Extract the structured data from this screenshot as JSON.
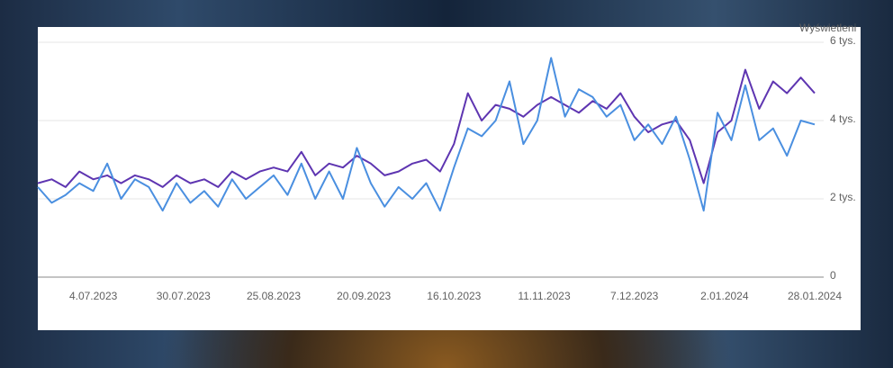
{
  "chart_data": {
    "type": "line",
    "y_axis_label": "Wyświetleni",
    "x": [
      "18.06.2023",
      "22.06.2023",
      "26.06.2023",
      "30.06.2023",
      "4.07.2023",
      "8.07.2023",
      "12.07.2023",
      "16.07.2023",
      "20.07.2023",
      "24.07.2023",
      "28.07.2023",
      "1.08.2023",
      "5.08.2023",
      "9.08.2023",
      "13.08.2023",
      "17.08.2023",
      "21.08.2023",
      "25.08.2023",
      "29.08.2023",
      "2.09.2023",
      "6.09.2023",
      "10.09.2023",
      "14.09.2023",
      "18.09.2023",
      "22.09.2023",
      "26.09.2023",
      "30.09.2023",
      "4.10.2023",
      "8.10.2023",
      "12.10.2023",
      "16.10.2023",
      "20.10.2023",
      "24.10.2023",
      "28.10.2023",
      "1.11.2023",
      "5.11.2023",
      "9.11.2023",
      "13.11.2023",
      "17.11.2023",
      "21.11.2023",
      "25.11.2023",
      "29.11.2023",
      "3.12.2023",
      "7.12.2023",
      "11.12.2023",
      "15.12.2023",
      "19.12.2023",
      "23.12.2023",
      "27.12.2023",
      "31.12.2023",
      "4.01.2024",
      "8.01.2024",
      "12.01.2024",
      "16.01.2024",
      "20.01.2024",
      "24.01.2024",
      "28.01.2024"
    ],
    "series": [
      {
        "color": "#5e35b1",
        "values": [
          2400,
          2500,
          2300,
          2700,
          2500,
          2600,
          2400,
          2600,
          2500,
          2300,
          2600,
          2400,
          2500,
          2300,
          2700,
          2500,
          2700,
          2800,
          2700,
          3200,
          2600,
          2900,
          2800,
          3100,
          2900,
          2600,
          2700,
          2900,
          3000,
          2700,
          3400,
          4700,
          4000,
          4400,
          4300,
          4100,
          4400,
          4600,
          4400,
          4200,
          4500,
          4300,
          4700,
          4100,
          3700,
          3900,
          4000,
          3500,
          2400,
          3700,
          4000,
          5300,
          4300,
          5000,
          4700,
          5100,
          4700
        ]
      },
      {
        "color": "#4a8fe0",
        "values": [
          2300,
          1900,
          2100,
          2400,
          2200,
          2900,
          2000,
          2500,
          2300,
          1700,
          2400,
          1900,
          2200,
          1800,
          2500,
          2000,
          2300,
          2600,
          2100,
          2900,
          2000,
          2700,
          2000,
          3300,
          2400,
          1800,
          2300,
          2000,
          2400,
          1700,
          2800,
          3800,
          3600,
          4000,
          5000,
          3400,
          4000,
          5600,
          4100,
          4800,
          4600,
          4100,
          4400,
          3500,
          3900,
          3400,
          4100,
          3000,
          1700,
          4200,
          3500,
          4900,
          3500,
          3800,
          3100,
          4000,
          3900
        ]
      }
    ],
    "xlim": [
      "18.06.2023",
      "28.01.2024"
    ],
    "xticks": [
      "4.07.2023",
      "30.07.2023",
      "25.08.2023",
      "20.09.2023",
      "16.10.2023",
      "11.11.2023",
      "7.12.2023",
      "2.01.2024",
      "28.01.2024"
    ],
    "ylim": [
      0,
      6000
    ],
    "yticks": [
      0,
      {
        "value": 2000,
        "label": "2 tys."
      },
      {
        "value": 4000,
        "label": "4 tys."
      },
      {
        "value": 6000,
        "label": "6 tys."
      }
    ],
    "grid": true
  }
}
